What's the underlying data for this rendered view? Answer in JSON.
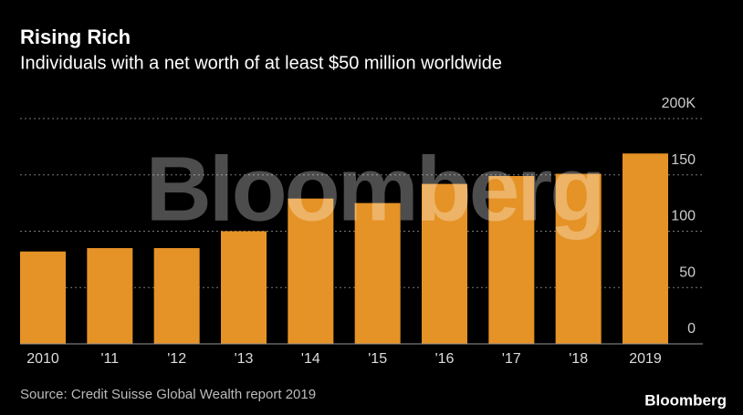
{
  "chart_data": {
    "type": "bar",
    "title": "Rising Rich",
    "subtitle": "Individuals with a net worth of at least $50 million worldwide",
    "categories": [
      "2010",
      "'11",
      "'12",
      "'13",
      "'14",
      "'15",
      "'16",
      "'17",
      "'18",
      "2019"
    ],
    "values": [
      82,
      85,
      85,
      100,
      129,
      125,
      142,
      149,
      151,
      169
    ],
    "color": "#e59226",
    "ylim": [
      0,
      200
    ],
    "yticks": [
      0,
      50,
      100,
      150,
      {
        "value": 200,
        "label": "200K"
      }
    ],
    "grid": true,
    "source": "Source: Credit Suisse Global Wealth report 2019",
    "watermark": "Bloomberg",
    "logo": "Bloomberg"
  }
}
